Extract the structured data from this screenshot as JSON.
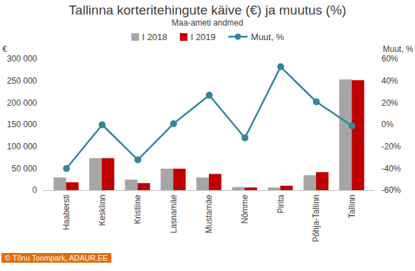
{
  "chart_data": {
    "type": "bar",
    "title": "Tallinna korteritehingute käive (€) ja muutus (%)",
    "subtitle": "Maa-ameti andmed",
    "caption": "© Tõnu Toompark, ADAUR.EE",
    "ylabel": "€",
    "y2label": "Muut, %",
    "categories": [
      "Haabersti",
      "Kesklinn",
      "Kristiine",
      "Lasnamäe",
      "Mustamäe",
      "Nõmme",
      "Pirita",
      "Põhja-Tallinn",
      "Tallinn"
    ],
    "series": [
      {
        "name": "I 2018",
        "color": "#a6a6a6",
        "values": [
          29000,
          73000,
          24000,
          49000,
          29000,
          7000,
          6000,
          34000,
          253000
        ]
      },
      {
        "name": "I 2019",
        "color": "#c00000",
        "values": [
          18000,
          73000,
          16000,
          49000,
          37000,
          6000,
          10000,
          41000,
          251000
        ]
      },
      {
        "name": "Muut, %",
        "type": "line",
        "color": "#31859c",
        "marker": "circle",
        "axis": "y2",
        "values": [
          -40,
          0,
          -32,
          1,
          27,
          -12,
          53,
          21,
          -1
        ]
      }
    ],
    "ylim": [
      0,
      300000
    ],
    "yticks": [
      0,
      {
        "value": 50000,
        "label": "50 000"
      },
      {
        "value": 100000,
        "label": "100 000"
      },
      {
        "value": 150000,
        "label": "150 000"
      },
      {
        "value": 200000,
        "label": "200 000"
      },
      {
        "value": 250000,
        "label": "250 000"
      },
      {
        "value": 300000,
        "label": "300 000"
      }
    ],
    "y2lim": [
      -60,
      60
    ],
    "y2ticks": [
      {
        "value": -60,
        "label": "-60%"
      },
      {
        "value": -40,
        "label": "-40%"
      },
      {
        "value": -20,
        "label": "-20%"
      },
      {
        "value": 0,
        "label": "0%"
      },
      {
        "value": 20,
        "label": "20%"
      },
      {
        "value": 40,
        "label": "40%"
      },
      {
        "value": 60,
        "label": "60%"
      }
    ],
    "grid": false,
    "legend": "top"
  }
}
